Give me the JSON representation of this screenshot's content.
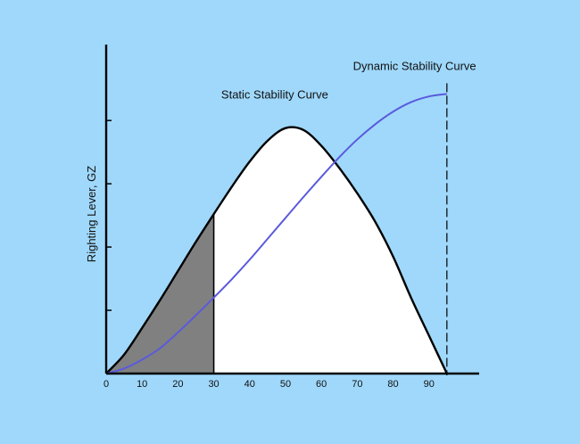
{
  "chart_data": {
    "type": "area",
    "title": "",
    "xlabel": "",
    "ylabel": "Righting Lever, GZ",
    "xlim": [
      0,
      104
    ],
    "ylim": [
      0,
      5.2
    ],
    "x_ticks": [
      0,
      10,
      20,
      30,
      40,
      50,
      60,
      70,
      80,
      90
    ],
    "y_tick_count": 4,
    "grid": false,
    "legend": "none",
    "shaded_range": [
      0,
      30
    ],
    "marker_x": 95,
    "colors": {
      "background": "#9fd8fb",
      "static_fill": "#ffffff",
      "shaded_fill": "#808080",
      "static_line": "#000000",
      "dynamic_line": "#5a5adc"
    },
    "series": [
      {
        "name": "Static Stability Curve",
        "x": [
          0,
          5,
          10,
          15,
          20,
          25,
          30,
          35,
          40,
          45,
          50,
          55,
          60,
          65,
          70,
          75,
          80,
          85,
          90,
          95
        ],
        "values": [
          0,
          0.3,
          0.72,
          1.16,
          1.62,
          2.08,
          2.52,
          2.95,
          3.35,
          3.68,
          3.88,
          3.85,
          3.6,
          3.25,
          2.85,
          2.4,
          1.85,
          1.2,
          0.6,
          0
        ]
      },
      {
        "name": "Dynamic Stability Curve",
        "x": [
          0,
          5,
          10,
          15,
          20,
          25,
          30,
          35,
          40,
          45,
          50,
          55,
          60,
          65,
          70,
          75,
          80,
          85,
          90,
          95
        ],
        "values": [
          0,
          0.08,
          0.22,
          0.4,
          0.65,
          0.92,
          1.2,
          1.49,
          1.8,
          2.13,
          2.46,
          2.79,
          3.11,
          3.42,
          3.7,
          3.94,
          4.14,
          4.29,
          4.38,
          4.42
        ]
      }
    ]
  }
}
